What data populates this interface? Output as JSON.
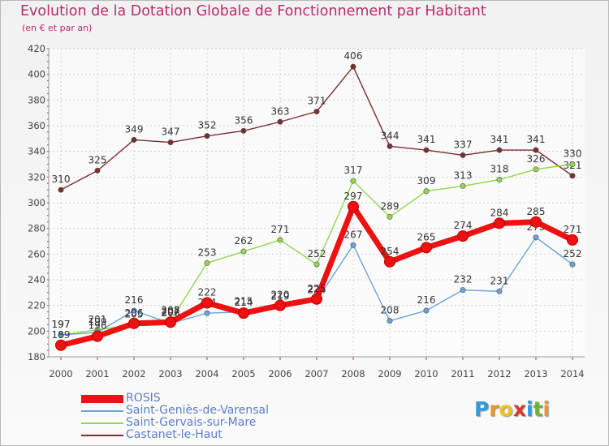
{
  "header": {
    "title": "Evolution de la Dotation Globale de Fonctionnement par Habitant",
    "subtitle": "(en € et par an)"
  },
  "logo": {
    "text": "Proxiti",
    "letters": [
      "P",
      "r",
      "o",
      "x",
      "i",
      "t",
      "i"
    ],
    "colors": [
      "#2f9be0",
      "#e6962a",
      "#f0c020",
      "#d23b2c",
      "#2f9be0",
      "#6ab636",
      "#e6962a"
    ]
  },
  "colors": {
    "ROSIS": "#ee1111",
    "Saint-Geniès-de-Varensal": "#6aa3d8",
    "Saint-Gervais-sur-Mare": "#92d651",
    "Castanet-le-Haut": "#7a2e2e"
  },
  "chart_data": {
    "type": "line",
    "title": "Evolution de la Dotation Globale de Fonctionnement par Habitant",
    "subtitle": "(en € et par an)",
    "xlabel": "",
    "ylabel": "",
    "x": [
      2000,
      2001,
      2002,
      2003,
      2004,
      2005,
      2006,
      2007,
      2008,
      2009,
      2010,
      2011,
      2012,
      2013,
      2014
    ],
    "ylim": [
      180,
      420
    ],
    "yticks": [
      180,
      200,
      220,
      240,
      260,
      280,
      300,
      320,
      340,
      360,
      380,
      400,
      420
    ],
    "grid": true,
    "legend_position": "bottom-left",
    "series": [
      {
        "name": "ROSIS",
        "values": [
          189,
          196,
          206,
          207,
          222,
          214,
          220,
          225,
          297,
          254,
          265,
          274,
          284,
          285,
          271
        ]
      },
      {
        "name": "Saint-Geniès-de-Varensal",
        "values": [
          197,
          199,
          216,
          206,
          214,
          215,
          219,
          224,
          267,
          208,
          216,
          232,
          231,
          273,
          252
        ]
      },
      {
        "name": "Saint-Gervais-sur-Mare",
        "values": [
          197,
          201,
          205,
          208,
          253,
          262,
          271,
          252,
          317,
          289,
          309,
          313,
          318,
          326,
          330
        ]
      },
      {
        "name": "Castanet-le-Haut",
        "values": [
          310,
          325,
          349,
          347,
          352,
          356,
          363,
          371,
          406,
          344,
          341,
          337,
          341,
          341,
          321
        ]
      }
    ]
  }
}
